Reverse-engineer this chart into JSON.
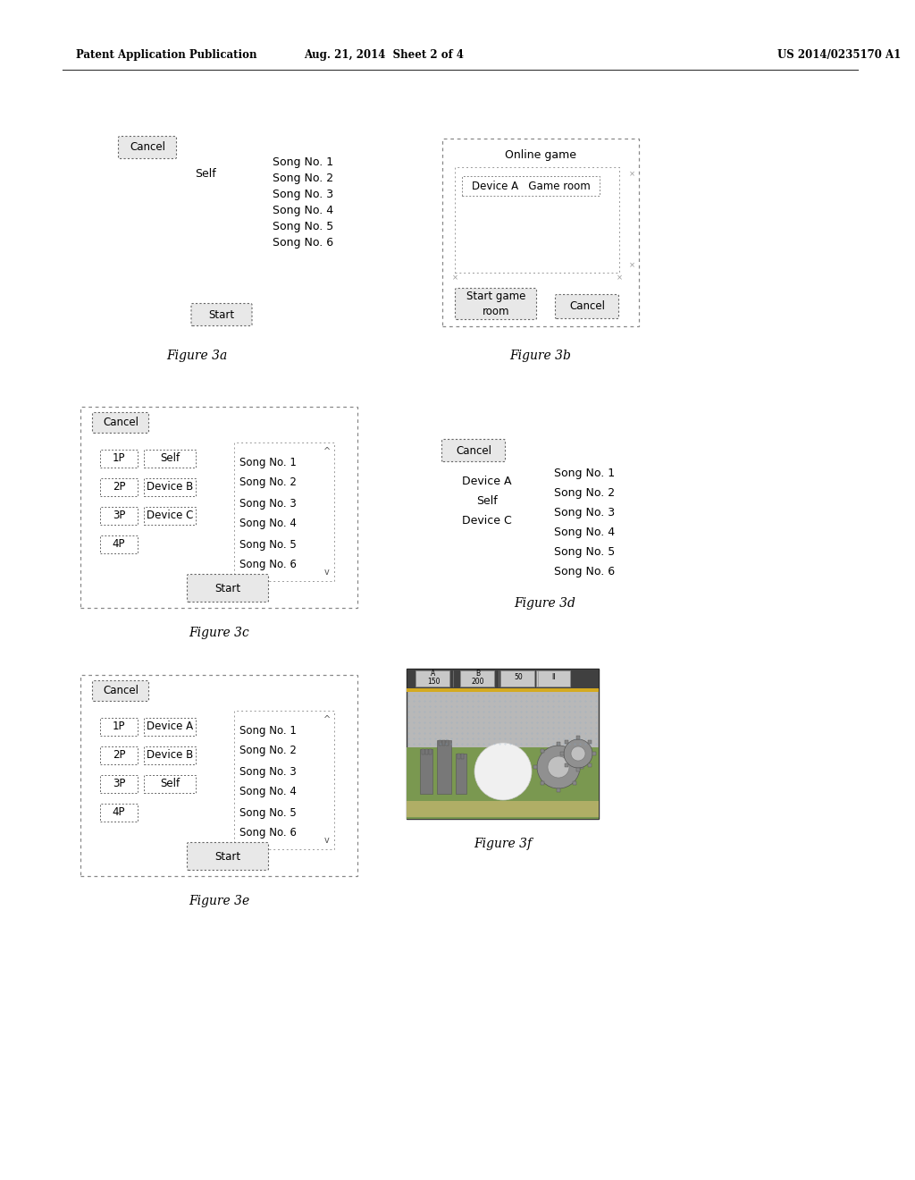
{
  "header_left": "Patent Application Publication",
  "header_mid": "Aug. 21, 2014  Sheet 2 of 4",
  "header_right": "US 2014/0235170 A1",
  "bg_color": "#ffffff",
  "text_color": "#000000",
  "songs": [
    "Song No. 1",
    "Song No. 2",
    "Song No. 3",
    "Song No. 4",
    "Song No. 5",
    "Song No. 6"
  ],
  "fig3a_label": "Figure 3a",
  "fig3b_label": "Figure 3b",
  "fig3c_label": "Figure 3c",
  "fig3d_label": "Figure 3d",
  "fig3e_label": "Figure 3e",
  "fig3f_label": "Figure 3f",
  "fig3c_rows": [
    [
      "1P",
      "Self"
    ],
    [
      "2P",
      "Device B"
    ],
    [
      "3P",
      "Device C"
    ],
    [
      "4P",
      ""
    ]
  ],
  "fig3d_devices": [
    "Device A",
    "Self",
    "Device C"
  ],
  "fig3e_rows": [
    [
      "1P",
      "Device A"
    ],
    [
      "2P",
      "Device B"
    ],
    [
      "3P",
      "Self"
    ],
    [
      "4P",
      ""
    ]
  ]
}
